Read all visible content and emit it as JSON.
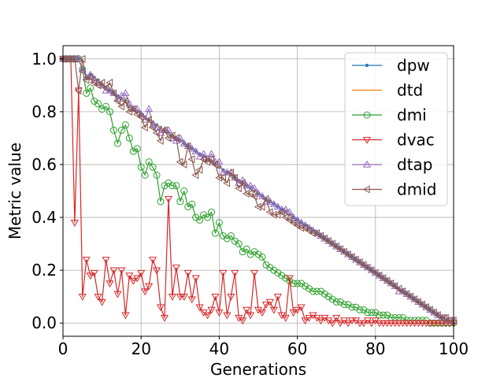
{
  "chart_data": {
    "type": "line",
    "title": "",
    "xlabel": "Generations",
    "ylabel": "Metric value",
    "xlim": [
      0,
      100
    ],
    "ylim": [
      -0.05,
      1.05
    ],
    "xticks": [
      0,
      20,
      40,
      60,
      80,
      100
    ],
    "yticks": [
      0.0,
      0.2,
      0.4,
      0.6,
      0.8,
      1.0
    ],
    "xtick_labels": [
      "0",
      "20",
      "40",
      "60",
      "80",
      "100"
    ],
    "ytick_labels": [
      "0.0",
      "0.2",
      "0.4",
      "0.6",
      "0.8",
      "1.0"
    ],
    "grid": true,
    "legend_position": "top-right",
    "series": [
      {
        "name": "dpw",
        "color": "#1f77b4",
        "marker": "dot",
        "values": [
          1.0,
          1.0,
          1.0,
          1.0,
          1.0,
          0.96,
          0.93,
          0.94,
          0.93,
          0.92,
          0.9,
          0.89,
          0.88,
          0.87,
          0.86,
          0.85,
          0.84,
          0.82,
          0.81,
          0.8,
          0.79,
          0.78,
          0.77,
          0.76,
          0.75,
          0.74,
          0.73,
          0.72,
          0.71,
          0.7,
          0.69,
          0.68,
          0.67,
          0.66,
          0.65,
          0.64,
          0.63,
          0.62,
          0.61,
          0.6,
          0.59,
          0.58,
          0.57,
          0.56,
          0.55,
          0.54,
          0.53,
          0.52,
          0.51,
          0.5,
          0.49,
          0.48,
          0.47,
          0.46,
          0.45,
          0.44,
          0.43,
          0.42,
          0.41,
          0.4,
          0.39,
          0.38,
          0.37,
          0.36,
          0.35,
          0.34,
          0.33,
          0.32,
          0.31,
          0.3,
          0.29,
          0.28,
          0.27,
          0.26,
          0.25,
          0.24,
          0.23,
          0.22,
          0.21,
          0.2,
          0.19,
          0.18,
          0.17,
          0.16,
          0.15,
          0.14,
          0.13,
          0.12,
          0.11,
          0.1,
          0.09,
          0.08,
          0.07,
          0.06,
          0.05,
          0.04,
          0.03,
          0.02,
          0.01,
          0.005,
          0.0
        ]
      },
      {
        "name": "dtd",
        "color": "#ff7f0e",
        "marker": "none",
        "values": [
          1.0,
          1.0,
          1.0,
          1.0,
          1.0,
          0.96,
          0.93,
          0.94,
          0.93,
          0.92,
          0.9,
          0.89,
          0.88,
          0.87,
          0.86,
          0.85,
          0.84,
          0.82,
          0.81,
          0.8,
          0.79,
          0.78,
          0.77,
          0.76,
          0.75,
          0.74,
          0.73,
          0.72,
          0.71,
          0.7,
          0.69,
          0.68,
          0.67,
          0.66,
          0.65,
          0.64,
          0.63,
          0.62,
          0.61,
          0.6,
          0.59,
          0.58,
          0.57,
          0.56,
          0.55,
          0.54,
          0.53,
          0.52,
          0.51,
          0.5,
          0.49,
          0.48,
          0.47,
          0.46,
          0.45,
          0.44,
          0.43,
          0.42,
          0.41,
          0.4,
          0.39,
          0.38,
          0.37,
          0.36,
          0.35,
          0.34,
          0.33,
          0.32,
          0.31,
          0.3,
          0.29,
          0.28,
          0.27,
          0.26,
          0.25,
          0.24,
          0.23,
          0.22,
          0.21,
          0.2,
          0.19,
          0.18,
          0.17,
          0.16,
          0.15,
          0.14,
          0.13,
          0.12,
          0.11,
          0.1,
          0.09,
          0.08,
          0.07,
          0.06,
          0.05,
          0.04,
          0.03,
          0.02,
          0.01,
          0.005,
          0.0
        ]
      },
      {
        "name": "dmi",
        "color": "#2ca02c",
        "marker": "circle",
        "values": [
          1.0,
          1.0,
          1.0,
          1.0,
          1.0,
          0.96,
          0.87,
          0.89,
          0.84,
          0.83,
          0.81,
          0.82,
          0.8,
          0.73,
          0.68,
          0.73,
          0.75,
          0.7,
          0.65,
          0.66,
          0.59,
          0.56,
          0.61,
          0.59,
          0.56,
          0.46,
          0.52,
          0.53,
          0.52,
          0.52,
          0.46,
          0.5,
          0.44,
          0.45,
          0.4,
          0.39,
          0.41,
          0.4,
          0.42,
          0.34,
          0.38,
          0.33,
          0.32,
          0.33,
          0.31,
          0.3,
          0.27,
          0.28,
          0.26,
          0.27,
          0.26,
          0.25,
          0.22,
          0.21,
          0.2,
          0.19,
          0.18,
          0.17,
          0.16,
          0.15,
          0.15,
          0.15,
          0.14,
          0.13,
          0.12,
          0.12,
          0.12,
          0.11,
          0.1,
          0.09,
          0.08,
          0.08,
          0.07,
          0.07,
          0.06,
          0.06,
          0.05,
          0.05,
          0.04,
          0.04,
          0.04,
          0.03,
          0.03,
          0.03,
          0.02,
          0.02,
          0.02,
          0.02,
          0.01,
          0.01,
          0.01,
          0.01,
          0.01,
          0.01,
          0.0,
          0.0,
          0.0,
          0.0,
          0.0,
          0.0,
          0.0
        ]
      },
      {
        "name": "dvac",
        "color": "#d62728",
        "marker": "triangle-down",
        "values": [
          1.0,
          1.0,
          1.0,
          0.38,
          0.88,
          0.1,
          0.24,
          0.18,
          0.19,
          0.1,
          0.08,
          0.24,
          0.15,
          0.2,
          0.11,
          0.2,
          0.03,
          0.18,
          0.16,
          0.17,
          0.19,
          0.12,
          0.14,
          0.24,
          0.2,
          0.06,
          0.02,
          0.47,
          0.1,
          0.21,
          0.1,
          0.1,
          0.19,
          0.09,
          0.17,
          0.06,
          0.04,
          0.03,
          0.05,
          0.1,
          0.04,
          0.19,
          0.03,
          0.1,
          0.19,
          0.02,
          0.01,
          0.05,
          0.03,
          0.19,
          0.05,
          0.04,
          0.07,
          0.08,
          0.05,
          0.1,
          0.03,
          0.02,
          0.17,
          0.04,
          0.05,
          0.06,
          0.01,
          0.02,
          0.03,
          0.02,
          0.01,
          0.02,
          0.01,
          0.0,
          0.02,
          0.0,
          0.01,
          0.0,
          0.01,
          0.01,
          0.0,
          0.0,
          0.01,
          0.0,
          0.01,
          0.0,
          0.0,
          0.0,
          0.0,
          0.0,
          0.0,
          0.0,
          0.0,
          0.0,
          0.0,
          0.0,
          0.0,
          0.0,
          0.0,
          0.0,
          0.0,
          0.0,
          0.0,
          0.0,
          0.0
        ]
      },
      {
        "name": "dtap",
        "color": "#9467bd",
        "marker": "triangle-up",
        "values": [
          1.0,
          1.0,
          1.0,
          1.0,
          1.0,
          0.96,
          0.93,
          0.94,
          0.92,
          0.91,
          0.9,
          0.88,
          0.88,
          0.87,
          0.85,
          0.86,
          0.87,
          0.83,
          0.81,
          0.81,
          0.79,
          0.77,
          0.81,
          0.75,
          0.74,
          0.72,
          0.73,
          0.73,
          0.7,
          0.69,
          0.7,
          0.68,
          0.67,
          0.66,
          0.65,
          0.63,
          0.64,
          0.62,
          0.64,
          0.61,
          0.61,
          0.57,
          0.57,
          0.57,
          0.55,
          0.53,
          0.54,
          0.52,
          0.52,
          0.51,
          0.49,
          0.48,
          0.46,
          0.46,
          0.45,
          0.44,
          0.43,
          0.43,
          0.42,
          0.4,
          0.39,
          0.38,
          0.37,
          0.36,
          0.35,
          0.34,
          0.33,
          0.32,
          0.31,
          0.3,
          0.29,
          0.28,
          0.27,
          0.26,
          0.25,
          0.24,
          0.23,
          0.22,
          0.21,
          0.2,
          0.19,
          0.18,
          0.17,
          0.16,
          0.15,
          0.14,
          0.12,
          0.12,
          0.11,
          0.1,
          0.09,
          0.08,
          0.07,
          0.06,
          0.05,
          0.04,
          0.03,
          0.02,
          0.02,
          0.01,
          0.01
        ]
      },
      {
        "name": "dmid",
        "color": "#8c564b",
        "marker": "triangle-left",
        "values": [
          1.0,
          1.0,
          1.0,
          1.0,
          0.88,
          1.0,
          0.92,
          0.93,
          0.91,
          0.9,
          0.91,
          0.89,
          0.91,
          0.87,
          0.84,
          0.82,
          0.84,
          0.8,
          0.81,
          0.79,
          0.78,
          0.74,
          0.77,
          0.74,
          0.72,
          0.69,
          0.73,
          0.7,
          0.71,
          0.7,
          0.61,
          0.6,
          0.67,
          0.62,
          0.56,
          0.58,
          0.62,
          0.61,
          0.62,
          0.6,
          0.55,
          0.55,
          0.53,
          0.57,
          0.55,
          0.51,
          0.53,
          0.49,
          0.49,
          0.48,
          0.44,
          0.44,
          0.47,
          0.42,
          0.41,
          0.41,
          0.42,
          0.4,
          0.39,
          0.38,
          0.37,
          0.36,
          0.36,
          0.35,
          0.34,
          0.34,
          0.33,
          0.32,
          0.31,
          0.3,
          0.29,
          0.28,
          0.27,
          0.26,
          0.25,
          0.24,
          0.23,
          0.22,
          0.21,
          0.2,
          0.19,
          0.18,
          0.17,
          0.16,
          0.15,
          0.14,
          0.13,
          0.12,
          0.11,
          0.1,
          0.09,
          0.08,
          0.07,
          0.06,
          0.05,
          0.04,
          0.03,
          0.02,
          0.02,
          0.01,
          0.01
        ]
      }
    ]
  }
}
